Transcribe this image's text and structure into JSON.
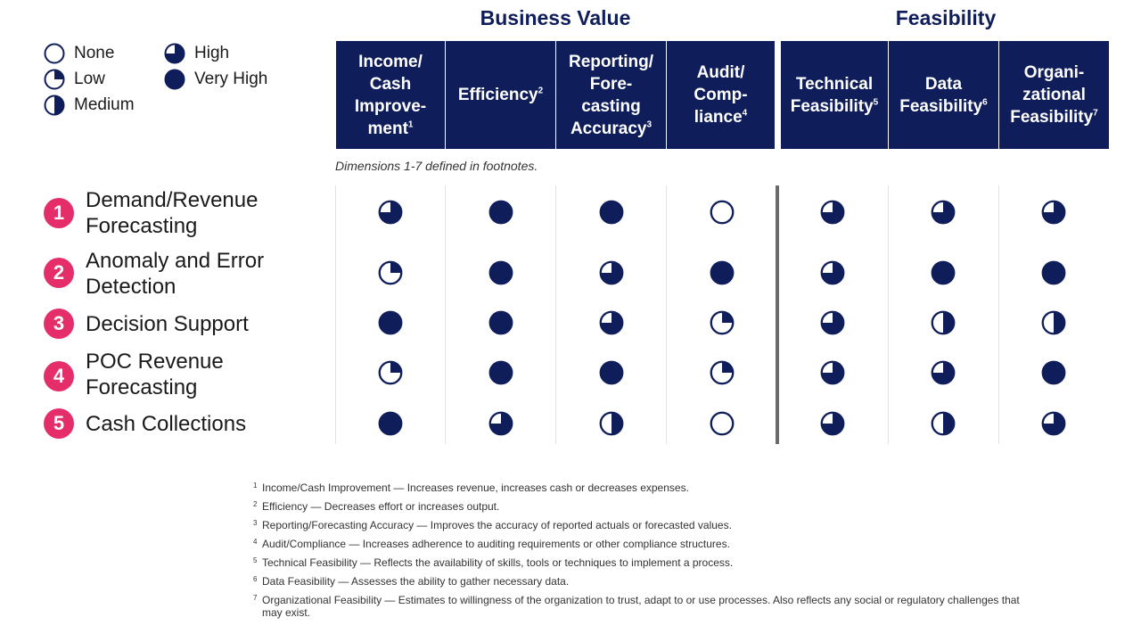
{
  "groups": {
    "business_value": "Business Value",
    "feasibility": "Feasibility"
  },
  "legend": [
    {
      "key": "none",
      "label": "None"
    },
    {
      "key": "low",
      "label": "Low"
    },
    {
      "key": "medium",
      "label": "Medium"
    },
    {
      "key": "high",
      "label": "High"
    },
    {
      "key": "very_high",
      "label": "Very High"
    }
  ],
  "colors": {
    "navy": "#0f1e5a",
    "badge": "#e52d6a",
    "divider": "#6b6b6b"
  },
  "note": "Dimensions 1-7 defined in footnotes.",
  "chart_data": {
    "type": "table",
    "scale": {
      "none": 0,
      "low": 1,
      "medium": 2,
      "high": 3,
      "very_high": 4
    },
    "columns": [
      {
        "lines": [
          "Income/",
          "Cash",
          "Improve-",
          "ment"
        ],
        "sup": "1",
        "group": "Business Value"
      },
      {
        "lines": [
          "Efficiency"
        ],
        "sup": "2",
        "group": "Business Value"
      },
      {
        "lines": [
          "Reporting/",
          "Fore-",
          "casting",
          "Accuracy"
        ],
        "sup": "3",
        "group": "Business Value"
      },
      {
        "lines": [
          "Audit/",
          "Comp-",
          "liance"
        ],
        "sup": "4",
        "group": "Business Value"
      },
      {
        "lines": [
          "Technical",
          "Feasibility"
        ],
        "sup": "5",
        "group": "Feasibility"
      },
      {
        "lines": [
          "Data",
          "Feasibility"
        ],
        "sup": "6",
        "group": "Feasibility"
      },
      {
        "lines": [
          "Organi-",
          "zational",
          "Feasibility"
        ],
        "sup": "7",
        "group": "Feasibility"
      }
    ],
    "rows": [
      {
        "num": "1",
        "lines": [
          "Demand/Revenue",
          "Forecasting"
        ],
        "values": [
          3,
          4,
          4,
          0,
          3,
          3,
          3
        ]
      },
      {
        "num": "2",
        "lines": [
          "Anomaly and Error",
          "Detection"
        ],
        "values": [
          1,
          4,
          3,
          4,
          3,
          4,
          4
        ]
      },
      {
        "num": "3",
        "lines": [
          "Decision Support"
        ],
        "values": [
          4,
          4,
          3,
          1,
          3,
          2,
          2
        ]
      },
      {
        "num": "4",
        "lines": [
          "POC Revenue",
          "Forecasting"
        ],
        "values": [
          1,
          4,
          4,
          1,
          3,
          3,
          4
        ]
      },
      {
        "num": "5",
        "lines": [
          "Cash Collections"
        ],
        "values": [
          4,
          3,
          2,
          0,
          3,
          2,
          3
        ]
      }
    ]
  },
  "footnotes": [
    {
      "num": "1",
      "text": "Income/Cash Improvement — Increases revenue, increases cash or decreases expenses."
    },
    {
      "num": "2",
      "text": "Efficiency — Decreases effort or increases output."
    },
    {
      "num": "3",
      "text": "Reporting/Forecasting Accuracy — Improves the accuracy of reported actuals or forecasted values."
    },
    {
      "num": "4",
      "text": "Audit/Compliance — Increases adherence to auditing requirements or other compliance structures."
    },
    {
      "num": "5",
      "text": "Technical Feasibility — Reflects the availability of skills, tools or techniques to implement a process."
    },
    {
      "num": "6",
      "text": "Data Feasibility — Assesses the ability to gather necessary data."
    },
    {
      "num": "7",
      "text": "Organizational Feasibility — Estimates to willingness of the organization to trust, adapt to or use processes. Also reflects any social or regulatory challenges that may exist."
    }
  ]
}
